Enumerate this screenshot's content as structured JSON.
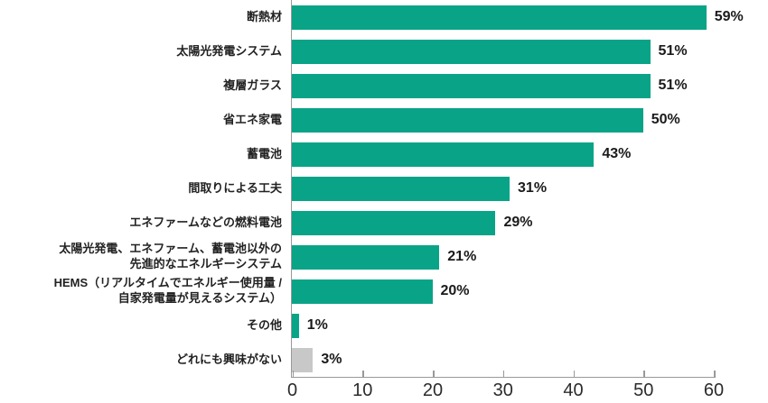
{
  "chart_data": {
    "type": "bar",
    "orientation": "horizontal",
    "categories": [
      "断熱材",
      "太陽光発電システム",
      "複層ガラス",
      "省エネ家電",
      "蓄電池",
      "間取りによる工夫",
      "エネファームなどの燃料電池",
      "太陽光発電、エネファーム、蓄電池以外の\n先進的なエネルギーシステム",
      "HEMS（リアルタイムでエネルギー使用量 /\n自家発電量が見えるシステム）",
      "その他",
      "どれにも興味がない"
    ],
    "values": [
      59,
      51,
      51,
      50,
      43,
      31,
      29,
      21,
      20,
      1,
      3
    ],
    "value_labels": [
      "59%",
      "51%",
      "51%",
      "50%",
      "43%",
      "31%",
      "29%",
      "21%",
      "20%",
      "1%",
      "3%"
    ],
    "bar_colors": [
      "#09a487",
      "#09a487",
      "#09a487",
      "#09a487",
      "#09a487",
      "#09a487",
      "#09a487",
      "#09a487",
      "#09a487",
      "#09a487",
      "#c8c8c8"
    ],
    "xlabel": "",
    "ylabel": "",
    "xlim": [
      0,
      60
    ],
    "x_ticks": [
      0,
      10,
      20,
      30,
      40,
      50,
      60
    ],
    "grid": false,
    "legend": false,
    "colors": {
      "primary_bar": "#09a487",
      "muted_bar": "#c8c8c8",
      "axis": "#999999",
      "text": "#1a1a1a"
    }
  }
}
